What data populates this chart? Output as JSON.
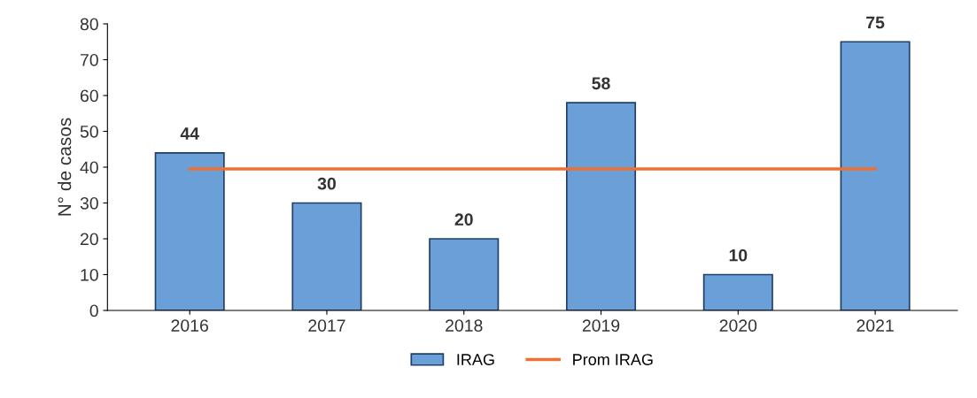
{
  "chart_data": {
    "type": "bar",
    "ylabel": "N° de casos",
    "categories": [
      "2016",
      "2017",
      "2018",
      "2019",
      "2020",
      "2021"
    ],
    "series": [
      {
        "name": "IRAG",
        "color": "#6a9fd8",
        "values": [
          44,
          30,
          20,
          58,
          10,
          75
        ],
        "value_labels": [
          "44",
          "30",
          "20",
          "58",
          "10",
          "75"
        ]
      },
      {
        "name": "Prom IRAG",
        "type": "line",
        "color": "#f07030",
        "values": [
          39.5,
          39.5,
          39.5,
          39.5,
          39.5,
          39.5
        ]
      }
    ],
    "ylim": [
      0,
      80
    ],
    "yticks": [
      0,
      10,
      20,
      30,
      40,
      50,
      60,
      70,
      80
    ],
    "grid": false,
    "legend": "bottom",
    "marker": "none"
  }
}
